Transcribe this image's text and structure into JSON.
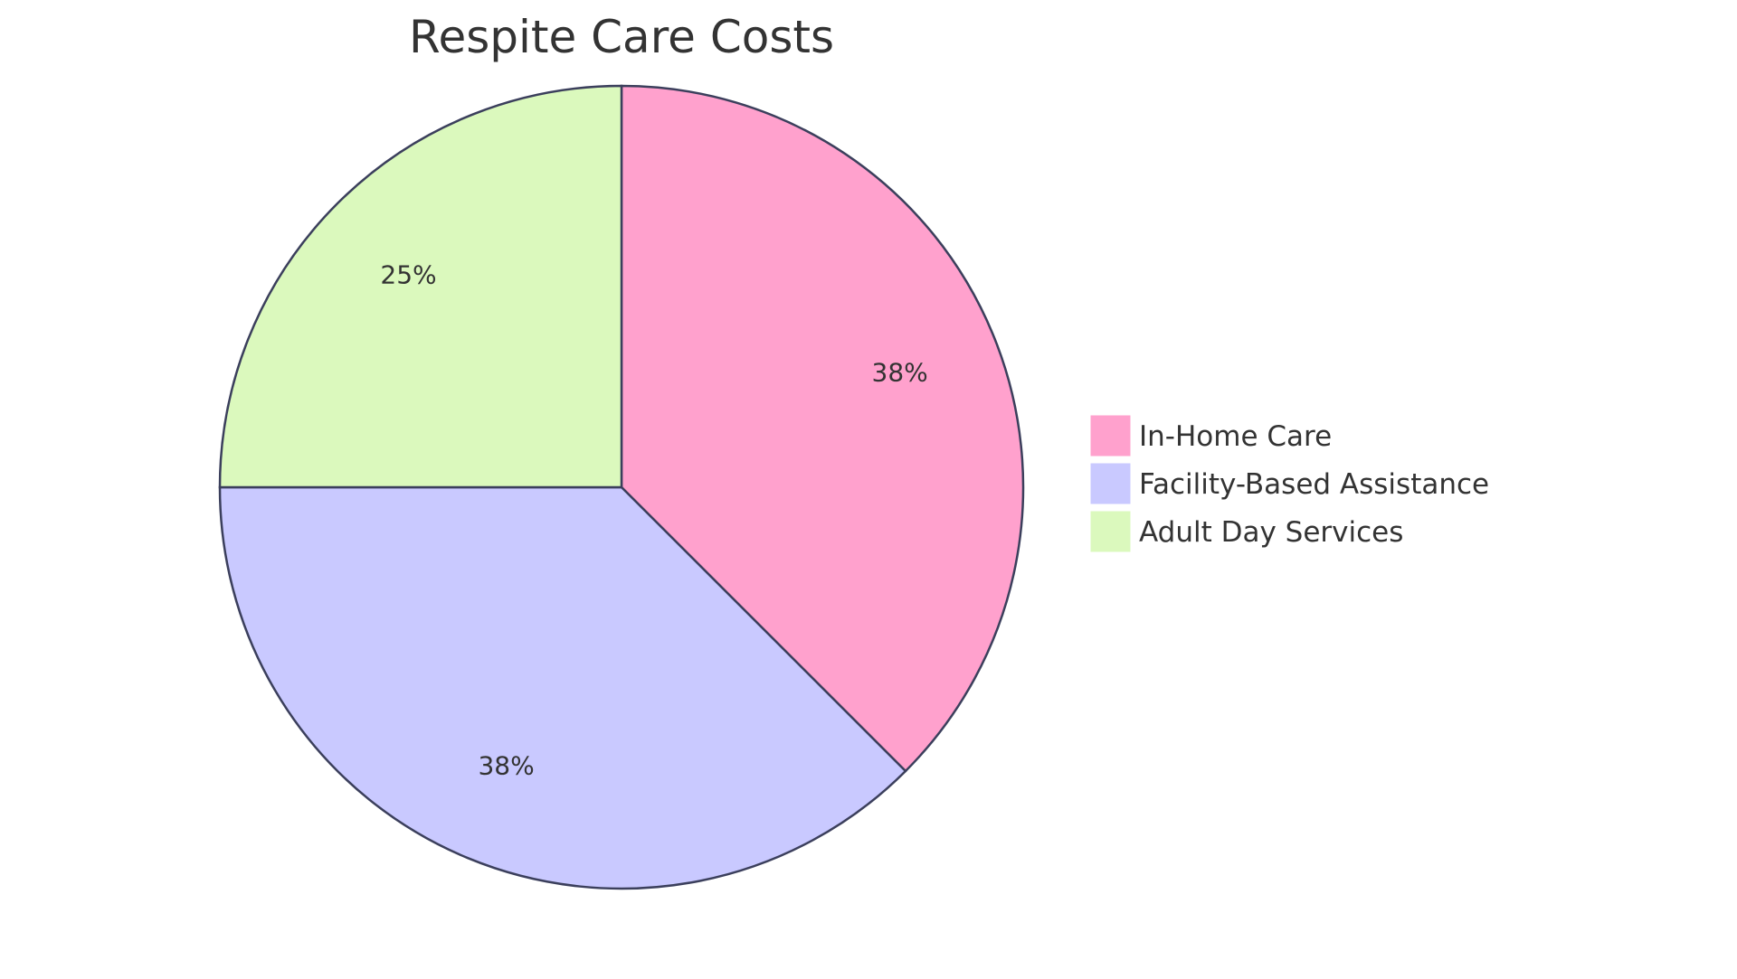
{
  "chart_data": {
    "type": "pie",
    "title": "Respite Care Costs",
    "categories": [
      "In-Home Care",
      "Facility-Based Assistance",
      "Adult Day Services"
    ],
    "values": [
      37.5,
      37.5,
      25
    ],
    "data_labels": [
      "38%",
      "38%",
      "25%"
    ],
    "colors": [
      "#ffa1cd",
      "#c9c9ff",
      "#dbf9bd"
    ],
    "stroke_color": "#3b3f5c",
    "start_angle": "12 o'clock, clockwise",
    "legend": "right"
  }
}
